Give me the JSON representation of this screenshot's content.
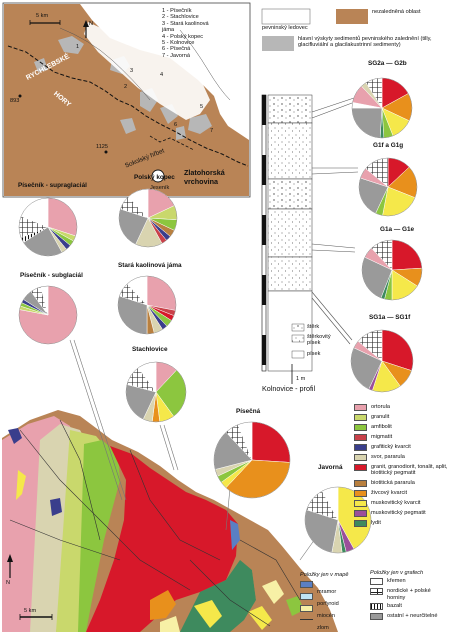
{
  "colors": {
    "ortorula": "#e8a1ad",
    "granulit": "#c9d86c",
    "amfibolit": "#8cc63f",
    "migmatit": "#c9414a",
    "graficky_kvarcit": "#3a3e8c",
    "svor_pararula": "#d9d4b0",
    "granit": "#d7182a",
    "biotiticka_pararula": "#b9803f",
    "zivcovy_kvarcit": "#e8901c",
    "muskoviticky_kvarcit": "#f5e84a",
    "muskoviticky_pegmatit": "#9b4f9a",
    "lydit": "#3e8a5e",
    "kremen": "#ffffff",
    "bazalt": "#222222",
    "ostatni": "#9a9a9a",
    "mramor": "#5a7fc4",
    "porfyroid": "#bfe3f5",
    "miocen": "#f7f0a6",
    "ledovec": "#ffffff",
    "nezaledneno": "#b98456",
    "sediment": "#b7b7b7"
  },
  "inset": {
    "scale": "5 km",
    "north": "N",
    "numbered": [
      "1 - Písečník",
      "2 - Stachlovice",
      "3 - Stará kaolinová",
      "     jáma",
      "4 - Polský kopec",
      "5 - Kolnovice",
      "6 - Písečná",
      "7 - Javorná"
    ],
    "rychlebske": "RYCHLEBSKÉ",
    "hory": "HORY",
    "peak": "1125",
    "peak2": "893",
    "sokolsky": "Sokolský hřbet",
    "jesenik": "Jeseník",
    "zlatohorska1": "Zlatohorská",
    "zlatohorska2": "vrchovina",
    "nums": [
      "1",
      "2",
      "3",
      "4",
      "5",
      "6",
      "7"
    ]
  },
  "top_legend": {
    "ledovec": "pevninský ledovec",
    "nezaledneno": "nezaledněná oblast",
    "sediment": "hlavní výskyty sedimentů pevninského zalednění (tilly, glacifluviální a glacilakustrinní sedimenty)"
  },
  "pie_titles": {
    "p_supra": "Písečník - supraglaciál",
    "p_sub": "Písečník - subglaciál",
    "polsky": "Polský kopec",
    "kaolin": "Stará kaolinová jáma",
    "stach": "Stachlovice",
    "pisecna": "Písečná",
    "javorna": "Javorná",
    "sg2": "SG2a — G2b",
    "g1f": "G1f a G1g",
    "g1a": "G1a — G1e",
    "sg1": "SG1a — SG1f"
  },
  "profile": {
    "title": "Kolnovice - profil",
    "leg": [
      "štěrk",
      "štěrkovitý",
      "písek",
      "písek"
    ],
    "scale": "1 m"
  },
  "rock_legend": [
    {
      "key": "ortorula",
      "label": "ortorula"
    },
    {
      "key": "granulit",
      "label": "granulit"
    },
    {
      "key": "amfibolit",
      "label": "amfibolit"
    },
    {
      "key": "migmatit",
      "label": "migmatit"
    },
    {
      "key": "graficky_kvarcit",
      "label": "grafitický kvarcit"
    },
    {
      "key": "svor_pararula",
      "label": "svor, pararula"
    },
    {
      "key": "granit",
      "label": "granit, granodiorit, tonalit, aplit, biotitický pegmatit"
    },
    {
      "key": "biotiticka_pararula",
      "label": "biotitická pararula"
    },
    {
      "key": "zivcovy_kvarcit",
      "label": "živcový kvarcit"
    },
    {
      "key": "muskoviticky_kvarcit",
      "label": "muskovitický kvarcit"
    },
    {
      "key": "muskoviticky_pegmatit",
      "label": "muskovitický pegmatit"
    },
    {
      "key": "lydit",
      "label": "lydit"
    }
  ],
  "map_only": {
    "title": "Položky jen v mapě",
    "items": [
      {
        "key": "mramor",
        "label": "mramor"
      },
      {
        "key": "porfyroid",
        "label": "porfyroid"
      },
      {
        "key": "miocen",
        "label": "miocén"
      },
      {
        "key": "zlom",
        "label": "zlom"
      }
    ]
  },
  "graph_only": {
    "title": "Položky jen v grafech",
    "items": [
      "křemen",
      "nordické + polské horniny",
      "bazalt",
      "ostatní + neurčitelné"
    ]
  },
  "map": {
    "scale": "5 km",
    "north": "N"
  },
  "pies": [
    {
      "id": "sg2",
      "slices": [
        [
          "granit",
          17
        ],
        [
          "zivcovy_kvarcit",
          15
        ],
        [
          "muskoviticky_kvarcit",
          12
        ],
        [
          "amfibolit",
          5
        ],
        [
          "lydit",
          2
        ],
        [
          "ostatni",
          24
        ],
        [
          "kremen",
          3
        ],
        [
          "ortorula",
          10
        ],
        [
          "svor_pararula",
          3
        ],
        [
          "nordic",
          9
        ]
      ]
    },
    {
      "id": "g1f",
      "slices": [
        [
          "granit",
          13
        ],
        [
          "zivcovy_kvarcit",
          18
        ],
        [
          "muskoviticky_kvarcit",
          22
        ],
        [
          "amfibolit",
          4
        ],
        [
          "ostatni",
          23
        ],
        [
          "ortorula",
          6
        ],
        [
          "nordic",
          14
        ]
      ]
    },
    {
      "id": "g1a",
      "slices": [
        [
          "granit",
          24
        ],
        [
          "zivcovy_kvarcit",
          10
        ],
        [
          "muskoviticky_kvarcit",
          16
        ],
        [
          "amfibolit",
          4
        ],
        [
          "lydit",
          2
        ],
        [
          "ostatni",
          26
        ],
        [
          "ortorula",
          6
        ],
        [
          "nordic",
          12
        ]
      ]
    },
    {
      "id": "sg1",
      "slices": [
        [
          "granit",
          30
        ],
        [
          "zivcovy_kvarcit",
          10
        ],
        [
          "muskoviticky_kvarcit",
          15
        ],
        [
          "muskoviticky_pegmatit",
          2
        ],
        [
          "ostatni",
          25
        ],
        [
          "ortorula",
          4
        ],
        [
          "nordic",
          14
        ]
      ]
    },
    {
      "id": "p_supra",
      "slices": [
        [
          "ortorula",
          30
        ],
        [
          "granulit",
          3
        ],
        [
          "amfibolit",
          3
        ],
        [
          "graficky_kvarcit",
          3
        ],
        [
          "svor_pararula",
          3
        ],
        [
          "ostatni",
          24
        ],
        [
          "bazalt",
          3
        ],
        [
          "nordic",
          12
        ],
        [
          "kremen",
          19
        ]
      ]
    },
    {
      "id": "p_sub",
      "slices": [
        [
          "ortorula",
          78
        ],
        [
          "granulit",
          2
        ],
        [
          "amfibolit",
          2
        ],
        [
          "graficky_kvarcit",
          2
        ],
        [
          "ostatni",
          6
        ],
        [
          "nordic",
          6
        ],
        [
          "kremen",
          4
        ]
      ]
    },
    {
      "id": "polsky",
      "slices": [
        [
          "ortorula",
          18
        ],
        [
          "granulit",
          8
        ],
        [
          "amfibolit",
          6
        ],
        [
          "biotiticka_pararula",
          4
        ],
        [
          "graficky_kvarcit",
          3
        ],
        [
          "migmatit",
          3
        ],
        [
          "svor_pararula",
          15
        ],
        [
          "ostatni",
          23
        ],
        [
          "nordic",
          8
        ],
        [
          "kremen",
          12
        ]
      ]
    },
    {
      "id": "kaolin",
      "slices": [
        [
          "ortorula",
          28
        ],
        [
          "migmatit",
          3
        ],
        [
          "granit",
          3
        ],
        [
          "amfibolit",
          4
        ],
        [
          "graficky_kvarcit",
          3
        ],
        [
          "svor_pararula",
          5
        ],
        [
          "biotiticka_pararula",
          4
        ],
        [
          "ostatni",
          30
        ],
        [
          "nordic",
          8
        ],
        [
          "kremen",
          12
        ]
      ]
    },
    {
      "id": "stach",
      "slices": [
        [
          "ortorula",
          12
        ],
        [
          "amfibolit",
          28
        ],
        [
          "muskoviticky_kvarcit",
          8
        ],
        [
          "zivcovy_kvarcit",
          4
        ],
        [
          "svor_pararula",
          5
        ],
        [
          "ostatni",
          22
        ],
        [
          "nordic",
          11
        ],
        [
          "kremen",
          10
        ]
      ]
    },
    {
      "id": "pisecna",
      "slices": [
        [
          "granit",
          26
        ],
        [
          "zivcovy_kvarcit",
          36
        ],
        [
          "muskoviticky_kvarcit",
          3
        ],
        [
          "amfibolit",
          3
        ],
        [
          "svor_pararula",
          3
        ],
        [
          "ostatni",
          17
        ],
        [
          "nordic",
          6
        ],
        [
          "kremen",
          6
        ]
      ]
    },
    {
      "id": "javorna",
      "slices": [
        [
          "muskoviticky_kvarcit",
          42
        ],
        [
          "muskoviticky_pegmatit",
          4
        ],
        [
          "lydit",
          2
        ],
        [
          "svor_pararula",
          5
        ],
        [
          "ostatni",
          27
        ],
        [
          "nordic",
          12
        ],
        [
          "kremen",
          8
        ]
      ]
    }
  ]
}
